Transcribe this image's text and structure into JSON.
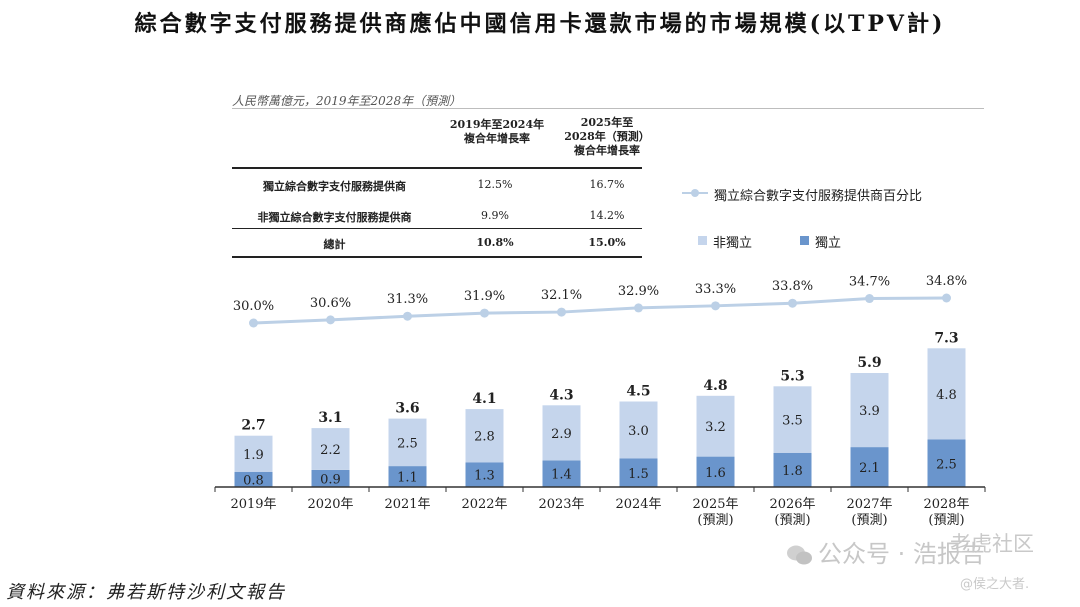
{
  "title": "綜合數字支付服務提供商應佔中國信用卡還款市場的市場規模(以TPV計)",
  "unit": "人民幣萬億元，2019年至2028年（預測）",
  "table": {
    "headers": [
      "2019年至2024年\n複合年增長率",
      "2025年至\n2028年（預測）\n複合年增長率"
    ],
    "rows": [
      {
        "label": "獨立綜合數字支付服務提供商",
        "c1": "12.5%",
        "c2": "16.7%"
      },
      {
        "label": "非獨立綜合數字支付服務提供商",
        "c1": "9.9%",
        "c2": "14.2%"
      },
      {
        "label": "總計",
        "c1": "10.8%",
        "c2": "15.0%"
      }
    ]
  },
  "legend": {
    "line_label": "獨立綜合數字支付服務提供商百分比",
    "non_independent": "非獨立",
    "independent": "獨立"
  },
  "colors": {
    "non_independent": "#c5d5ec",
    "independent": "#6a95cc",
    "line": "#bcd0e6"
  },
  "chart_data": {
    "type": "bar",
    "stacked": true,
    "categories": [
      "2019年",
      "2020年",
      "2021年",
      "2022年",
      "2023年",
      "2024年",
      "2025年\n(預測)",
      "2026年\n(預測)",
      "2027年\n(預測)",
      "2028年\n(預測)"
    ],
    "series": [
      {
        "name": "獨立",
        "values": [
          0.8,
          0.9,
          1.1,
          1.3,
          1.4,
          1.5,
          1.6,
          1.8,
          2.1,
          2.5
        ],
        "labels": [
          "0.8",
          "0.9",
          "1.1",
          "1.3",
          "1.4",
          "1.5",
          "1.6",
          "1.8",
          "2.1",
          "2.5"
        ]
      },
      {
        "name": "非獨立",
        "values": [
          1.9,
          2.2,
          2.5,
          2.8,
          2.9,
          3.0,
          3.2,
          3.5,
          3.9,
          4.8
        ],
        "labels": [
          "1.9",
          "2.2",
          "2.5",
          "2.8",
          "2.9",
          "3.0",
          "3.2",
          "3.5",
          "3.9",
          "4.8"
        ]
      }
    ],
    "totals": [
      2.7,
      3.1,
      3.6,
      4.1,
      4.3,
      4.5,
      4.8,
      5.3,
      5.9,
      7.3
    ],
    "total_labels": [
      "2.7",
      "3.1",
      "3.6",
      "4.1",
      "4.3",
      "4.5",
      "4.8",
      "5.3",
      "5.9",
      "7.3"
    ],
    "line": {
      "name": "獨立綜合數字支付服務提供商百分比",
      "values": [
        30.0,
        30.6,
        31.3,
        31.9,
        32.1,
        32.9,
        33.3,
        33.8,
        34.7,
        34.8
      ],
      "labels": [
        "30.0%",
        "30.6%",
        "31.3%",
        "31.9%",
        "32.1%",
        "32.9%",
        "33.3%",
        "33.8%",
        "34.7%",
        "34.8%"
      ]
    },
    "ylim": [
      0,
      7.3
    ],
    "grid": false,
    "legend_position": "right"
  },
  "source": "資料來源：弗若斯特沙利文報告",
  "watermark": {
    "account": "公众号 · 浩报告",
    "community": "老虎社区",
    "handle": "@侯之大者."
  }
}
